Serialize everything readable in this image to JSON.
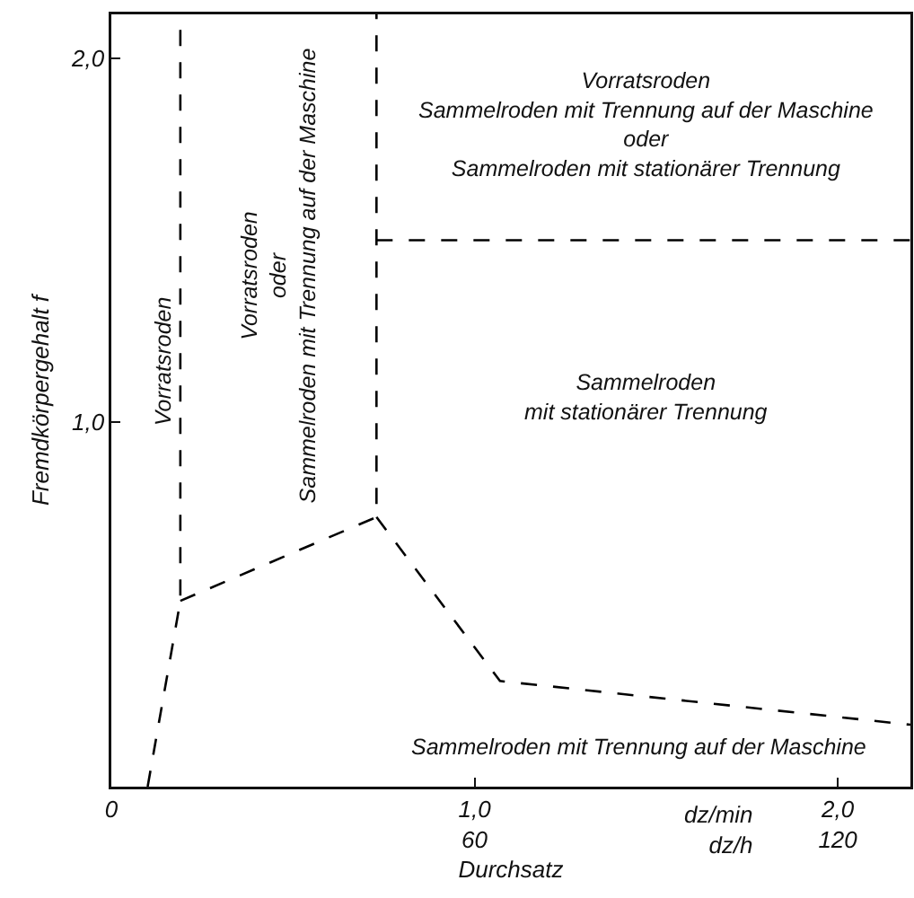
{
  "chart_data": {
    "type": "line",
    "xlabel": "Durchsatz",
    "ylabel": "Fremdkörpergehalt f",
    "xlim": [
      0,
      2.2
    ],
    "ylim": [
      0,
      2.12
    ],
    "xticks": [
      0,
      {
        "value": 1,
        "label": "1,0"
      },
      {
        "value": 2,
        "label": "2,0"
      }
    ],
    "x2lim": [
      0,
      132
    ],
    "x2ticks": [
      60,
      120
    ],
    "yticks": [
      {
        "value": 1,
        "label": "1,0"
      },
      {
        "value": 2,
        "label": "2,0"
      }
    ],
    "grid": false,
    "marker": "none",
    "line_style": "dashed",
    "series": [
      {
        "color": "#000000",
        "x": [
          0.1,
          0.19,
          0.19
        ],
        "values": [
          0,
          0.51,
          2.12
        ]
      },
      {
        "color": "#000000",
        "x": [
          0.19,
          0.73,
          0.73
        ],
        "values": [
          0.51,
          0.74,
          2.12
        ]
      },
      {
        "color": "#000000",
        "x": [
          0.73,
          1.07,
          2.2
        ],
        "values": [
          0.74,
          0.29,
          0.17
        ]
      },
      {
        "color": "#000000",
        "x": [
          0.73,
          2.2
        ],
        "values": [
          1.5,
          1.5
        ]
      }
    ],
    "annotations": [
      "Vorratsroden",
      "Vorratsroden\noder\nSammelroden mit Trennung auf der Maschine",
      "Vorratsroden\nSammelroden mit Trennung auf der Maschine\noder\nSammelroden mit stationärer Trennung",
      "Sammelroden\nmit stationärer Trennung",
      "Sammelroden mit Trennung auf der Maschine",
      "dz/min\ndz/h"
    ]
  }
}
